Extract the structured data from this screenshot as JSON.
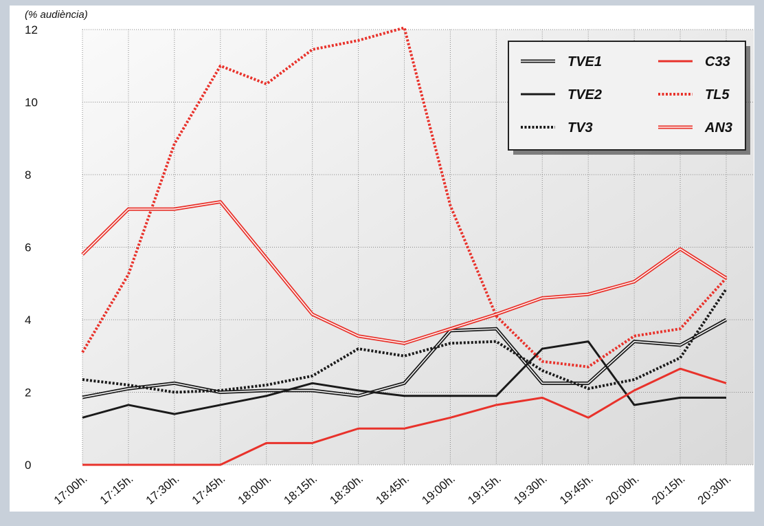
{
  "chart_data": {
    "type": "line",
    "y_label": "(% audiència)",
    "categories": [
      "17:00h.",
      "17:15h.",
      "17:30h.",
      "17:45h.",
      "18:00h.",
      "18:15h.",
      "18:30h.",
      "18:45h.",
      "19:00h.",
      "19:15h.",
      "19:30h.",
      "19:45h.",
      "20:00h.",
      "20:15h.",
      "20:30h."
    ],
    "ylim": [
      0,
      12
    ],
    "yticks": [
      0,
      2,
      4,
      6,
      8,
      10,
      12
    ],
    "grid": true,
    "legend": "top-right",
    "series": [
      {
        "name": "TVE1",
        "color": "#1a1a1a",
        "style": "double",
        "values": [
          1.86,
          2.1,
          2.25,
          2.0,
          2.05,
          2.05,
          1.9,
          2.25,
          3.7,
          3.75,
          2.25,
          2.25,
          3.4,
          3.3,
          4.0
        ]
      },
      {
        "name": "TVE2",
        "color": "#1a1a1a",
        "style": "solid",
        "values": [
          1.3,
          1.65,
          1.4,
          1.65,
          1.9,
          2.25,
          2.05,
          1.9,
          1.9,
          1.9,
          3.2,
          3.4,
          1.65,
          1.85,
          1.85
        ]
      },
      {
        "name": "TV3",
        "color": "#1a1a1a",
        "style": "dotted",
        "values": [
          2.35,
          2.2,
          2.0,
          2.05,
          2.2,
          2.45,
          3.2,
          3.0,
          3.35,
          3.4,
          2.6,
          2.1,
          2.35,
          2.95,
          4.85
        ]
      },
      {
        "name": "C33",
        "color": "#e8322b",
        "style": "solid",
        "values": [
          0,
          0,
          0,
          0,
          0.6,
          0.6,
          1.0,
          1.0,
          1.3,
          1.65,
          1.85,
          1.3,
          2.05,
          2.65,
          2.25
        ]
      },
      {
        "name": "TL5",
        "color": "#e8322b",
        "style": "dotted",
        "values": [
          3.1,
          5.25,
          8.85,
          11.0,
          10.5,
          11.45,
          11.7,
          12.05,
          7.15,
          4.1,
          2.85,
          2.7,
          3.55,
          3.75,
          5.15
        ]
      },
      {
        "name": "AN3",
        "color": "#e8322b",
        "style": "double",
        "values": [
          5.8,
          7.05,
          7.05,
          7.25,
          5.7,
          4.15,
          3.55,
          3.35,
          3.75,
          4.15,
          4.6,
          4.7,
          5.05,
          5.95,
          5.15
        ]
      }
    ]
  }
}
